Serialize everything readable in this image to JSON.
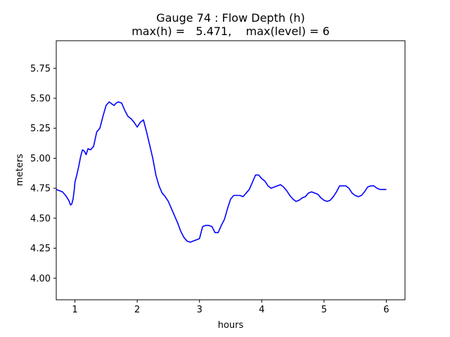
{
  "chart_data": {
    "type": "line",
    "title_line1": "Gauge 74 : Flow Depth (h)",
    "title_line2": "max(h) =   5.471,    max(level) = 6",
    "xlabel": "hours",
    "ylabel": "meters",
    "xlim": [
      0.7,
      6.3
    ],
    "ylim": [
      3.82,
      5.98
    ],
    "xticks": [
      1,
      2,
      3,
      4,
      5,
      6
    ],
    "yticks": [
      4.0,
      4.25,
      4.5,
      4.75,
      5.0,
      5.25,
      5.5,
      5.75
    ],
    "xtick_labels": [
      "1",
      "2",
      "3",
      "4",
      "5",
      "6"
    ],
    "ytick_labels": [
      "4.00",
      "4.25",
      "4.50",
      "4.75",
      "5.00",
      "5.25",
      "5.50",
      "5.75"
    ],
    "grid": false,
    "series": [
      {
        "color": "#0000ff",
        "x": [
          0.7,
          0.8,
          0.85,
          0.9,
          0.93,
          0.95,
          0.97,
          0.99,
          1.0,
          1.03,
          1.06,
          1.09,
          1.12,
          1.15,
          1.18,
          1.21,
          1.25,
          1.3,
          1.35,
          1.4,
          1.45,
          1.5,
          1.55,
          1.6,
          1.63,
          1.66,
          1.7,
          1.75,
          1.8,
          1.85,
          1.9,
          1.95,
          2.0,
          2.05,
          2.1,
          2.15,
          2.2,
          2.25,
          2.3,
          2.35,
          2.4,
          2.45,
          2.5,
          2.55,
          2.6,
          2.65,
          2.7,
          2.75,
          2.8,
          2.85,
          2.9,
          2.95,
          3.0,
          3.05,
          3.1,
          3.15,
          3.2,
          3.25,
          3.3,
          3.35,
          3.4,
          3.45,
          3.5,
          3.55,
          3.6,
          3.65,
          3.7,
          3.75,
          3.8,
          3.85,
          3.9,
          3.95,
          4.0,
          4.05,
          4.1,
          4.15,
          4.2,
          4.25,
          4.3,
          4.35,
          4.4,
          4.45,
          4.5,
          4.55,
          4.6,
          4.65,
          4.7,
          4.75,
          4.8,
          4.85,
          4.9,
          4.95,
          5.0,
          5.05,
          5.1,
          5.15,
          5.2,
          5.25,
          5.3,
          5.35,
          5.4,
          5.45,
          5.5,
          5.55,
          5.6,
          5.65,
          5.7,
          5.75,
          5.8,
          5.85,
          5.9,
          5.95,
          6.0
        ],
        "y": [
          4.74,
          4.72,
          4.69,
          4.65,
          4.61,
          4.62,
          4.66,
          4.74,
          4.8,
          4.86,
          4.93,
          5.01,
          5.07,
          5.06,
          5.03,
          5.08,
          5.07,
          5.1,
          5.22,
          5.25,
          5.35,
          5.44,
          5.47,
          5.45,
          5.44,
          5.46,
          5.47,
          5.46,
          5.4,
          5.35,
          5.33,
          5.3,
          5.26,
          5.3,
          5.32,
          5.22,
          5.11,
          5.0,
          4.86,
          4.77,
          4.71,
          4.68,
          4.64,
          4.58,
          4.52,
          4.46,
          4.39,
          4.34,
          4.31,
          4.3,
          4.31,
          4.32,
          4.33,
          4.43,
          4.44,
          4.44,
          4.43,
          4.38,
          4.38,
          4.44,
          4.49,
          4.58,
          4.66,
          4.69,
          4.69,
          4.69,
          4.68,
          4.71,
          4.74,
          4.8,
          4.86,
          4.86,
          4.83,
          4.81,
          4.77,
          4.75,
          4.76,
          4.77,
          4.78,
          4.76,
          4.73,
          4.69,
          4.66,
          4.64,
          4.65,
          4.67,
          4.68,
          4.71,
          4.72,
          4.71,
          4.7,
          4.67,
          4.65,
          4.64,
          4.65,
          4.68,
          4.72,
          4.77,
          4.77,
          4.77,
          4.75,
          4.71,
          4.69,
          4.68,
          4.69,
          4.72,
          4.76,
          4.77,
          4.77,
          4.75,
          4.74,
          4.74,
          4.74
        ]
      }
    ]
  }
}
